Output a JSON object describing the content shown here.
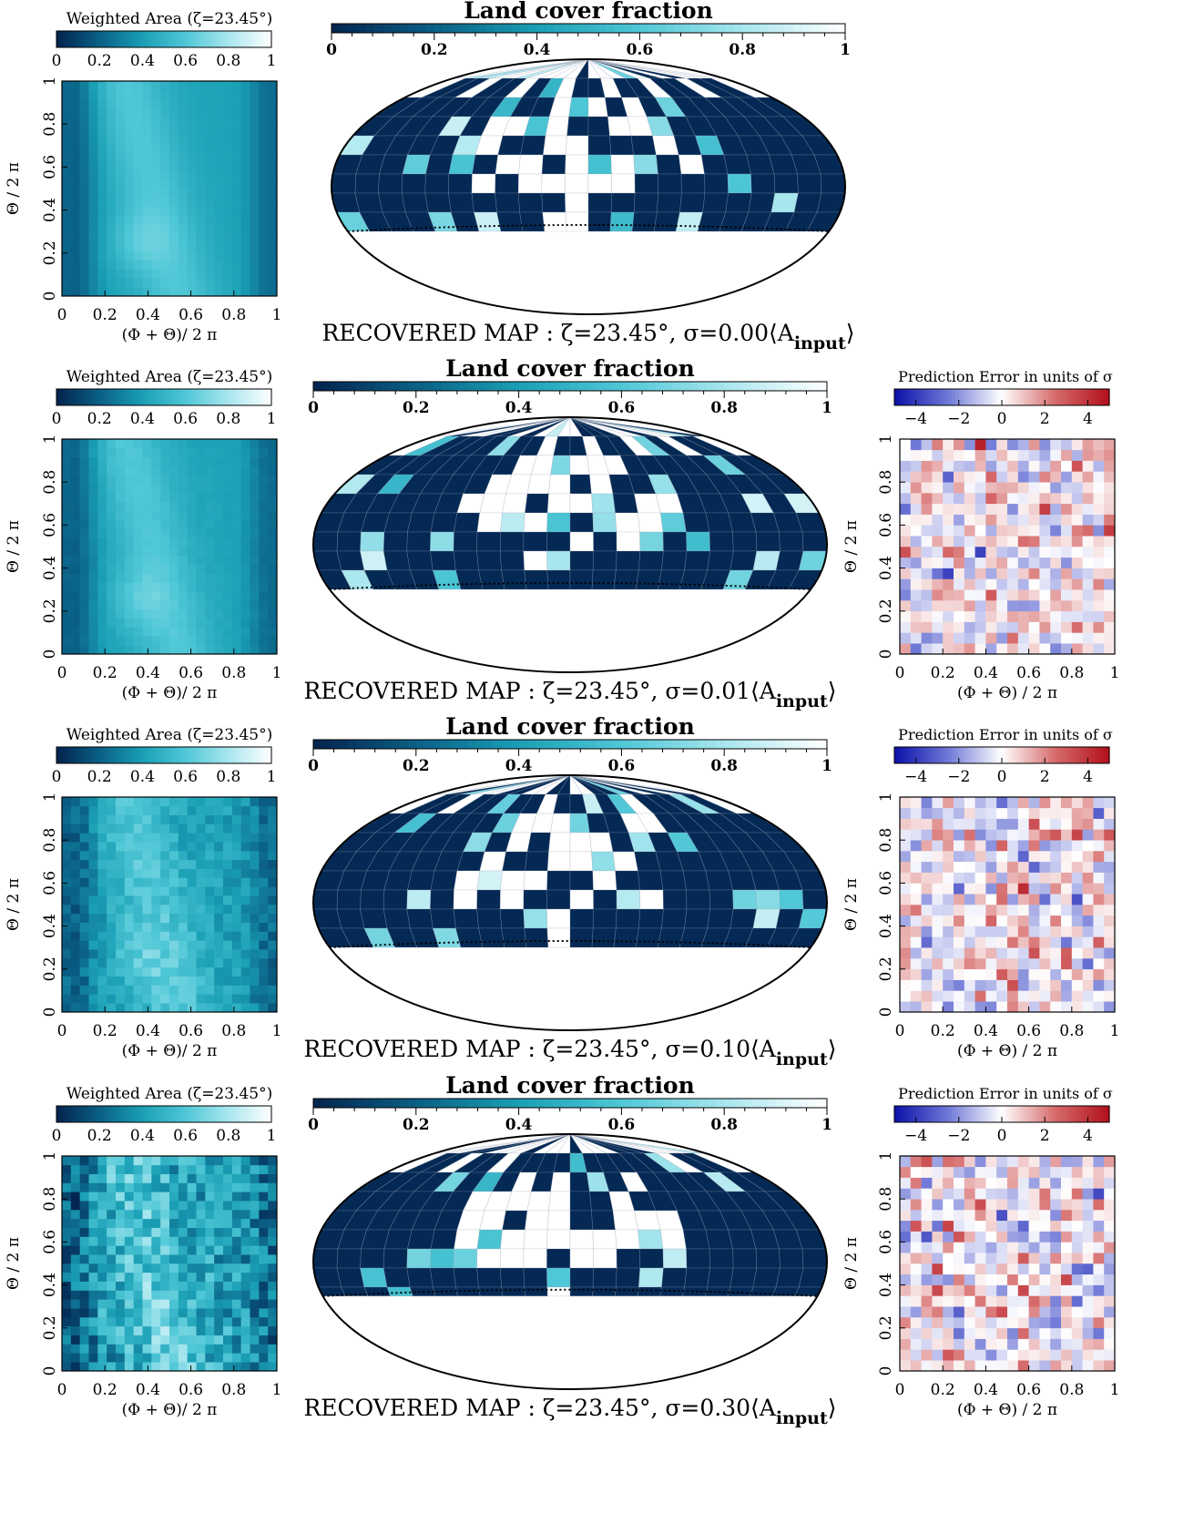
{
  "figure": {
    "panels": [
      {
        "id": "sigma000",
        "weighted_area": {
          "colorbar_label": "Weighted Area (ζ=23.45°)",
          "colorbar_ticks": [
            "0",
            "0.2",
            "0.4",
            "0.6",
            "0.8",
            "1"
          ],
          "xlabel": "(Φ + Θ)/ 2 π",
          "ylabel": "Θ / 2 π",
          "x_ticks": [
            "0",
            "0.2",
            "0.4",
            "0.6",
            "0.8",
            "1"
          ],
          "y_ticks": [
            "0",
            "0.2",
            "0.4",
            "0.6",
            "0.8",
            "1"
          ]
        },
        "land_cover": {
          "title": "Land cover fraction",
          "colorbar_ticks": [
            "0",
            "0.2",
            "0.4",
            "0.6",
            "0.8",
            "1"
          ]
        },
        "caption": {
          "prefix": "RECOVERED MAP : ζ=23.45°, σ=0.00⟨A",
          "sub": "input",
          "suffix": "⟩"
        },
        "prediction_error": null
      },
      {
        "id": "sigma001",
        "weighted_area": {
          "colorbar_label": "Weighted Area (ζ=23.45°)",
          "colorbar_ticks": [
            "0",
            "0.2",
            "0.4",
            "0.6",
            "0.8",
            "1"
          ],
          "xlabel": "(Φ + Θ)/ 2 π",
          "ylabel": "Θ / 2 π",
          "x_ticks": [
            "0",
            "0.2",
            "0.4",
            "0.6",
            "0.8",
            "1"
          ],
          "y_ticks": [
            "0",
            "0.2",
            "0.4",
            "0.6",
            "0.8",
            "1"
          ]
        },
        "land_cover": {
          "title": "Land cover fraction",
          "colorbar_ticks": [
            "0",
            "0.2",
            "0.4",
            "0.6",
            "0.8",
            "1"
          ]
        },
        "caption": {
          "prefix": "RECOVERED MAP : ζ=23.45°, σ=0.01⟨A",
          "sub": "input",
          "suffix": "⟩"
        },
        "prediction_error": {
          "colorbar_label": "Prediction Error in units of σ",
          "colorbar_ticks": [
            "−4",
            "−2",
            "0",
            "2",
            "4"
          ],
          "xlabel": "(Φ + Θ) / 2 π",
          "ylabel": "Θ / 2 π",
          "x_ticks": [
            "0",
            "0.2",
            "0.4",
            "0.6",
            "0.8",
            "1"
          ],
          "y_ticks": [
            "0",
            "0.2",
            "0.4",
            "0.6",
            "0.8",
            "1"
          ]
        }
      },
      {
        "id": "sigma010",
        "weighted_area": {
          "colorbar_label": "Weighted Area (ζ=23.45°)",
          "colorbar_ticks": [
            "0",
            "0.2",
            "0.4",
            "0.6",
            "0.8",
            "1"
          ],
          "xlabel": "(Φ + Θ)/ 2 π",
          "ylabel": "Θ / 2 π",
          "x_ticks": [
            "0",
            "0.2",
            "0.4",
            "0.6",
            "0.8",
            "1"
          ],
          "y_ticks": [
            "0",
            "0.2",
            "0.4",
            "0.6",
            "0.8",
            "1"
          ]
        },
        "land_cover": {
          "title": "Land cover fraction",
          "colorbar_ticks": [
            "0",
            "0.2",
            "0.4",
            "0.6",
            "0.8",
            "1"
          ]
        },
        "caption": {
          "prefix": "RECOVERED MAP : ζ=23.45°, σ=0.10⟨A",
          "sub": "input",
          "suffix": "⟩"
        },
        "prediction_error": {
          "colorbar_label": "Prediction Error in units of σ",
          "colorbar_ticks": [
            "−4",
            "−2",
            "0",
            "2",
            "4"
          ],
          "xlabel": "(Φ + Θ) / 2 π",
          "ylabel": "Θ / 2 π",
          "x_ticks": [
            "0",
            "0.2",
            "0.4",
            "0.6",
            "0.8",
            "1"
          ],
          "y_ticks": [
            "0",
            "0.2",
            "0.4",
            "0.6",
            "0.8",
            "1"
          ]
        }
      },
      {
        "id": "sigma030",
        "weighted_area": {
          "colorbar_label": "Weighted Area (ζ=23.45°)",
          "colorbar_ticks": [
            "0",
            "0.2",
            "0.4",
            "0.6",
            "0.8",
            "1"
          ],
          "xlabel": "(Φ + Θ)/ 2 π",
          "ylabel": "Θ / 2 π",
          "x_ticks": [
            "0",
            "0.2",
            "0.4",
            "0.6",
            "0.8",
            "1"
          ],
          "y_ticks": [
            "0",
            "0.2",
            "0.4",
            "0.6",
            "0.8",
            "1"
          ]
        },
        "land_cover": {
          "title": "Land cover fraction",
          "colorbar_ticks": [
            "0",
            "0.2",
            "0.4",
            "0.6",
            "0.8",
            "1"
          ]
        },
        "caption": {
          "prefix": "RECOVERED MAP : ζ=23.45°, σ=0.30⟨A",
          "sub": "input",
          "suffix": "⟩"
        },
        "prediction_error": {
          "colorbar_label": "Prediction Error in units of σ",
          "colorbar_ticks": [
            "−4",
            "−2",
            "0",
            "2",
            "4"
          ],
          "xlabel": "(Φ + Θ) / 2 π",
          "ylabel": "Θ / 2 π",
          "x_ticks": [
            "0",
            "0.2",
            "0.4",
            "0.6",
            "0.8",
            "1"
          ],
          "y_ticks": [
            "0",
            "0.2",
            "0.4",
            "0.6",
            "0.8",
            "1"
          ]
        }
      }
    ]
  },
  "chart_data": [
    {
      "type": "heatmap",
      "panel": "weighted-area",
      "colorbar": "Weighted Area (ζ=23.45°)",
      "clim": [
        0,
        1
      ],
      "xlim": [
        0,
        1
      ],
      "ylim": [
        0,
        1
      ],
      "grid_size": 24,
      "xlabel": "(Φ + Θ)/ 2 π",
      "ylabel": "Θ / 2 π",
      "sigma_levels": [
        0.0,
        0.01,
        0.1,
        0.3
      ],
      "approx_value_range": [
        0.15,
        0.75
      ]
    },
    {
      "type": "heatmap",
      "panel": "recovered-land-cover-map",
      "projection": "mollweide",
      "title": "Land cover fraction",
      "clim": [
        0,
        1
      ],
      "sigma_levels": [
        0.0,
        0.01,
        0.1,
        0.3
      ],
      "grid": "longitude-latitude pixels, southern cap unconstrained"
    },
    {
      "type": "heatmap",
      "panel": "prediction-error",
      "colorbar": "Prediction Error in units of σ",
      "clim": [
        -5,
        5
      ],
      "xlim": [
        0,
        1
      ],
      "ylim": [
        0,
        1
      ],
      "grid_size": 20,
      "xlabel": "(Φ + Θ) / 2 π",
      "ylabel": "Θ / 2 π",
      "sigma_levels": [
        0.01,
        0.1,
        0.3
      ]
    }
  ],
  "colors": {
    "landcover_scale": [
      "#03234e",
      "#0a5f85",
      "#1a9fb5",
      "#4fc7d6",
      "#a7e6ee",
      "#ffffff"
    ],
    "error_scale": [
      "#0b0fa8",
      "#6f78d6",
      "#ffffff",
      "#d66a6a",
      "#b10f1a"
    ]
  }
}
